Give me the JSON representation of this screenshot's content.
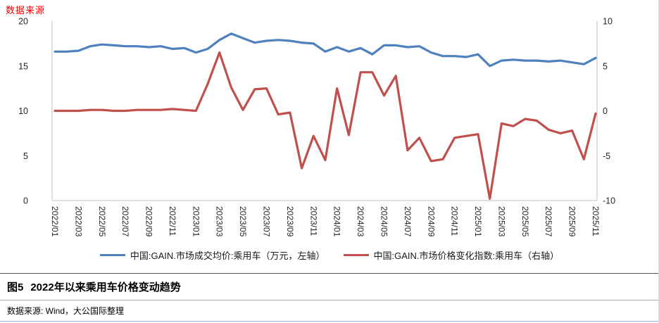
{
  "page": {
    "top_note": "数据来源",
    "caption_label": "图5",
    "caption_title": "2022年以来乘用车价格变动趋势",
    "source": "数据来源: Wind，大公国际整理"
  },
  "colors": {
    "blue_series": "#4F81BD",
    "red_series": "#C0504D",
    "note_red": "#FF0000"
  },
  "chart_data": {
    "type": "line",
    "categories": [
      "2022/01",
      "2022/02",
      "2022/03",
      "2022/04",
      "2022/05",
      "2022/06",
      "2022/07",
      "2022/08",
      "2022/09",
      "2022/10",
      "2022/11",
      "2022/12",
      "2023/01",
      "2023/02",
      "2023/03",
      "2023/04",
      "2023/05",
      "2023/06",
      "2023/07",
      "2023/08",
      "2023/09",
      "2023/10",
      "2023/11",
      "2023/12",
      "2024/01",
      "2024/02",
      "2024/03",
      "2024/04",
      "2024/05",
      "2024/06",
      "2024/07",
      "2024/08",
      "2024/09",
      "2024/10",
      "2024/11",
      "2024/12",
      "2025/01",
      "2025/02",
      "2025/03",
      "2025/04",
      "2025/05",
      "2025/06",
      "2025/07",
      "2025/08",
      "2025/09",
      "2025/10",
      "2025/11"
    ],
    "x_tick_every": 2,
    "series": [
      {
        "name": "中国:GAIN.市场成交均价:乘用车（万元，左轴）",
        "axis": "left",
        "color": "#4F81BD",
        "values": [
          16.6,
          16.6,
          16.7,
          17.2,
          17.4,
          17.3,
          17.2,
          17.2,
          17.1,
          17.2,
          16.9,
          17.0,
          16.5,
          16.9,
          17.9,
          18.6,
          18.1,
          17.6,
          17.8,
          17.9,
          17.8,
          17.6,
          17.5,
          16.6,
          17.1,
          16.6,
          17.0,
          16.3,
          17.3,
          17.3,
          17.1,
          17.2,
          16.5,
          16.1,
          16.1,
          16.0,
          16.3,
          15.0,
          15.6,
          15.7,
          15.6,
          15.6,
          15.5,
          15.6,
          15.4,
          15.2,
          15.9
        ]
      },
      {
        "name": "中国:GAIN.市场价格变化指数:乘用车（右轴）",
        "axis": "right",
        "color": "#C0504D",
        "values": [
          0.0,
          0.0,
          0.0,
          0.1,
          0.1,
          0.0,
          0.0,
          0.1,
          0.1,
          0.1,
          0.2,
          0.1,
          0.0,
          3.0,
          6.5,
          2.6,
          0.1,
          2.4,
          2.5,
          -0.4,
          -0.2,
          -6.4,
          -2.8,
          -5.5,
          2.5,
          -2.7,
          4.3,
          4.3,
          1.7,
          3.9,
          -4.4,
          -3.0,
          -5.6,
          -5.4,
          -3.0,
          -2.8,
          -2.6,
          -9.8,
          -1.4,
          -1.7,
          -0.9,
          -1.1,
          -2.1,
          -2.5,
          -2.2,
          -5.4,
          -0.3
        ]
      }
    ],
    "left_axis": {
      "min": 0,
      "max": 20,
      "ticks": [
        20,
        15,
        10,
        5,
        0
      ]
    },
    "right_axis": {
      "min": -10,
      "max": 10,
      "ticks": [
        10,
        5,
        0,
        -5,
        -10
      ]
    },
    "grid": false,
    "legend_position": "bottom"
  }
}
